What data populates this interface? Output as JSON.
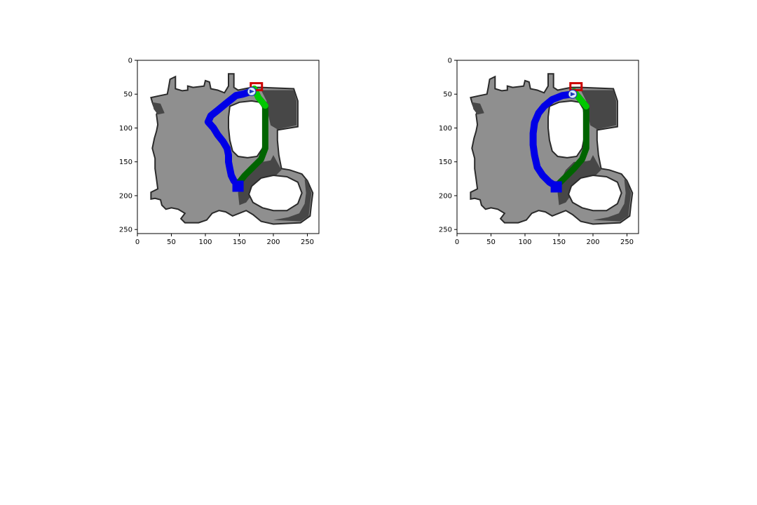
{
  "colors": {
    "background": "#ffffff",
    "map_light": "#8f8f8f",
    "map_dark": "#474747",
    "map_border": "#2a2a2a",
    "hole": "#ffffff",
    "path_blue": "#0000e6",
    "path_green_dark": "#006400",
    "path_green_light": "#00c800",
    "goal_red": "#cc0000",
    "agent_fill": "#dce8ff",
    "agent_edge": "#1f3ab8"
  },
  "chart_data": [
    {
      "type": "image",
      "xlim": [
        0,
        267
      ],
      "ylim": [
        256,
        0
      ],
      "xticks": [
        "0",
        "50",
        "100",
        "150",
        "200",
        "250"
      ],
      "yticks": [
        "0",
        "50",
        "100",
        "150",
        "200",
        "250"
      ],
      "xtick_values": [
        0,
        50,
        100,
        150,
        200,
        250
      ],
      "ytick_values": [
        0,
        50,
        100,
        150,
        200,
        250
      ],
      "grid": false,
      "paths": [
        {
          "color": "blue",
          "points": [
            [
              168,
              46
            ],
            [
              155,
              50
            ],
            [
              145,
              52
            ],
            [
              130,
              64
            ],
            [
              118,
              74
            ],
            [
              108,
              82
            ],
            [
              104,
              91
            ],
            [
              112,
              100
            ],
            [
              118,
              110
            ],
            [
              126,
              120
            ],
            [
              132,
              130
            ],
            [
              134,
              140
            ],
            [
              134,
              150
            ],
            [
              136,
              160
            ],
            [
              138,
              170
            ],
            [
              142,
              178
            ],
            [
              148,
              184
            ]
          ]
        },
        {
          "color": "green",
          "points": [
            [
              172,
              42
            ],
            [
              178,
              55
            ],
            [
              188,
              67
            ],
            [
              188,
              90
            ],
            [
              188,
              110
            ],
            [
              188,
              130
            ],
            [
              182,
              146
            ],
            [
              170,
              158
            ],
            [
              158,
              170
            ],
            [
              150,
              180
            ],
            [
              148,
              184
            ]
          ]
        }
      ],
      "start": [
        148,
        186
      ],
      "goal": [
        175,
        40
      ],
      "agent": [
        168,
        46
      ]
    },
    {
      "type": "image",
      "xlim": [
        0,
        267
      ],
      "ylim": [
        256,
        0
      ],
      "xticks": [
        "0",
        "50",
        "100",
        "150",
        "200",
        "250"
      ],
      "yticks": [
        "0",
        "50",
        "100",
        "150",
        "200",
        "250"
      ],
      "xtick_values": [
        0,
        50,
        100,
        150,
        200,
        250
      ],
      "ytick_values": [
        0,
        50,
        100,
        150,
        200,
        250
      ],
      "grid": false,
      "paths": [
        {
          "color": "blue",
          "points": [
            [
              170,
              50
            ],
            [
              155,
              52
            ],
            [
              140,
              58
            ],
            [
              128,
              68
            ],
            [
              120,
              78
            ],
            [
              114,
              92
            ],
            [
              112,
              108
            ],
            [
              112,
              125
            ],
            [
              114,
              140
            ],
            [
              118,
              158
            ],
            [
              126,
              170
            ],
            [
              136,
              180
            ],
            [
              146,
              186
            ]
          ]
        },
        {
          "color": "green",
          "points": [
            [
              172,
              46
            ],
            [
              180,
              56
            ],
            [
              190,
              68
            ],
            [
              190,
              90
            ],
            [
              190,
              110
            ],
            [
              190,
              130
            ],
            [
              184,
              146
            ],
            [
              172,
              160
            ],
            [
              160,
              172
            ],
            [
              150,
              182
            ],
            [
              146,
              186
            ]
          ]
        }
      ],
      "start": [
        146,
        187
      ],
      "goal": [
        175,
        40
      ],
      "agent": [
        170,
        50
      ]
    }
  ]
}
